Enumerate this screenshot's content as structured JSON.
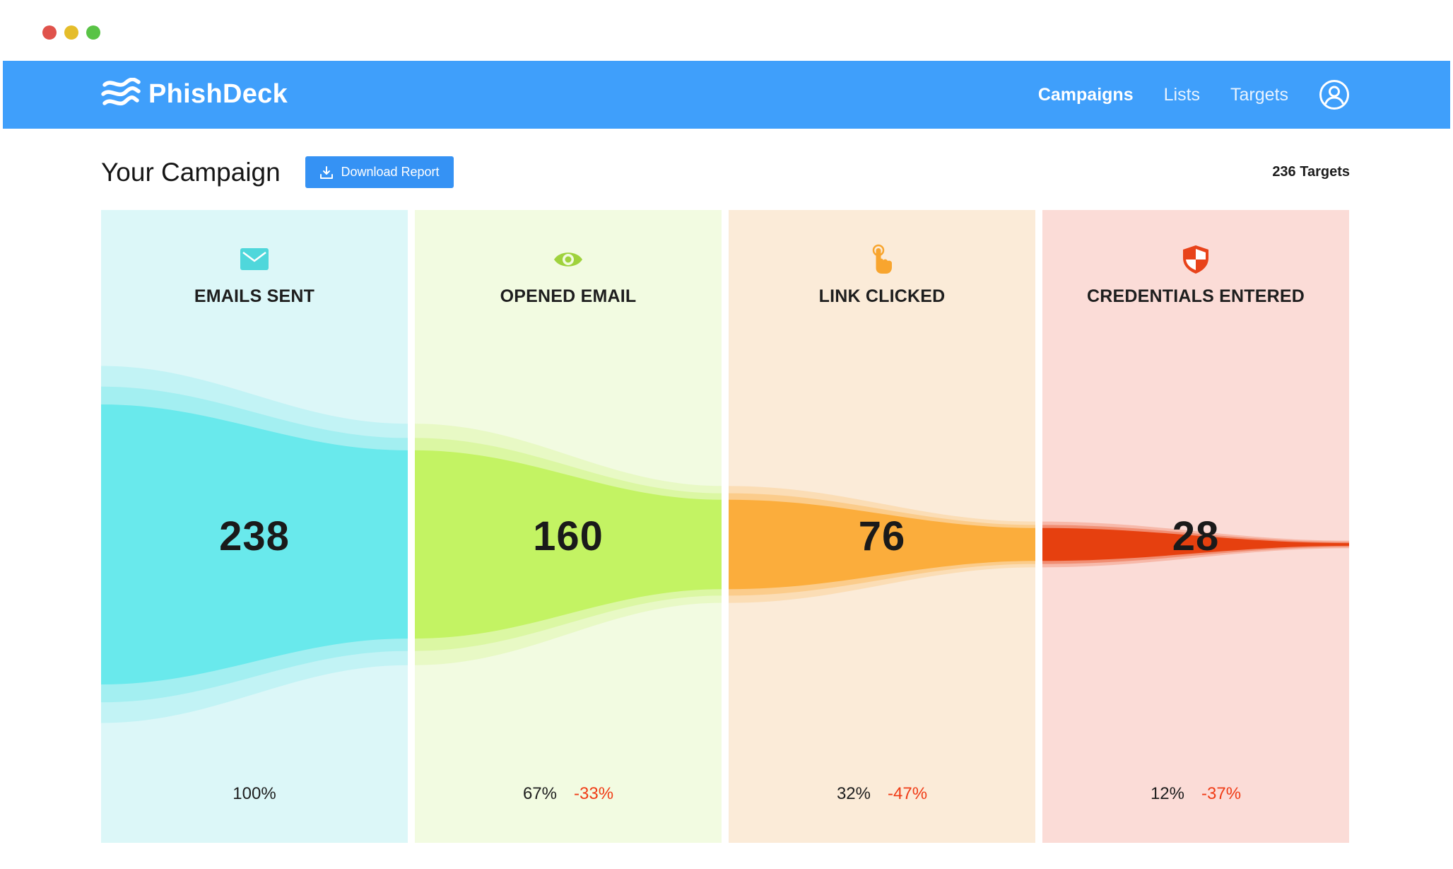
{
  "window": {
    "controls": [
      {
        "name": "close",
        "color": "#e0524b"
      },
      {
        "name": "minimize",
        "color": "#e5bd2a"
      },
      {
        "name": "maximize",
        "color": "#59c346"
      }
    ]
  },
  "colors": {
    "brand": "#3f9ffb",
    "button": "#3592f4",
    "negative": "#f03c16",
    "divider": "#ffffff"
  },
  "navbar": {
    "logo_text": "PhishDeck",
    "logo_icon": "waves-icon",
    "links": [
      {
        "label": "Campaigns",
        "active": true
      },
      {
        "label": "Lists",
        "active": false
      },
      {
        "label": "Targets",
        "active": false
      }
    ],
    "user_icon": "user-circle-icon"
  },
  "header": {
    "title": "Your Campaign",
    "download_label": "Download Report",
    "download_icon": "download-icon",
    "targets_label": "236 Targets"
  },
  "chart_data": {
    "type": "funnel",
    "stages": [
      {
        "label": "EMAILS SENT",
        "value": 238,
        "percent": "100%",
        "change": "",
        "icon": "envelope-icon",
        "bg": "#dcf7f8",
        "fill": "#69e9ec"
      },
      {
        "label": "OPENED EMAIL",
        "value": 160,
        "percent": "67%",
        "change": "-33%",
        "icon": "eye-icon",
        "bg": "#f2fbe1",
        "fill": "#c3f363"
      },
      {
        "label": "LINK CLICKED",
        "value": 76,
        "percent": "32%",
        "change": "-47%",
        "icon": "pointer-hand-icon",
        "bg": "#fbebd8",
        "fill": "#fbad3c"
      },
      {
        "label": "CREDENTIALS ENTERED",
        "value": 28,
        "percent": "12%",
        "change": "-37%",
        "icon": "shield-icon",
        "bg": "#fbdcd7",
        "fill": "#e6400f"
      }
    ]
  }
}
